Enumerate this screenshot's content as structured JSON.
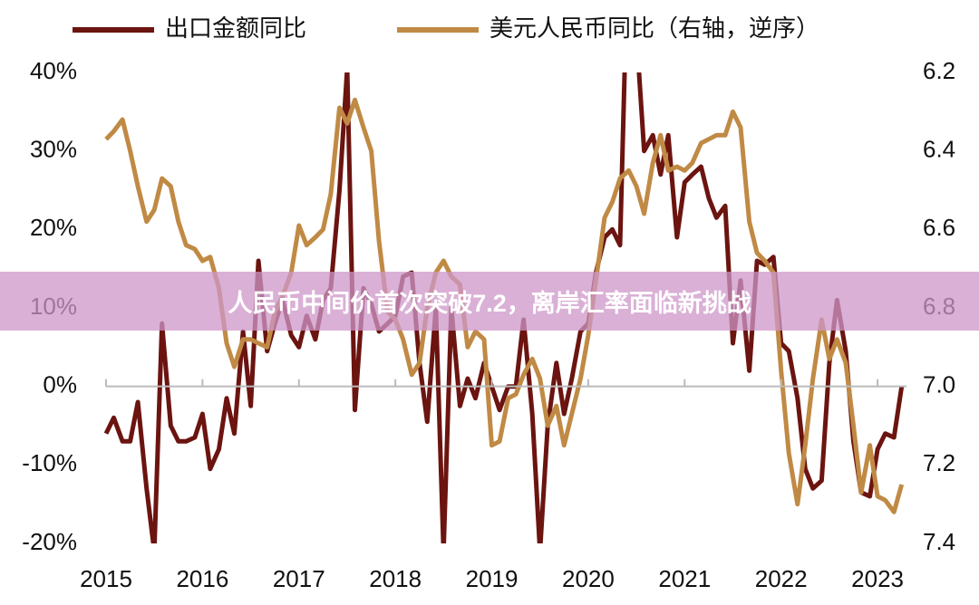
{
  "chart_data": {
    "type": "line",
    "legend": "top",
    "x": [
      2015,
      2015.08,
      2015.17,
      2015.25,
      2015.33,
      2015.42,
      2015.5,
      2015.58,
      2015.67,
      2015.75,
      2015.83,
      2015.92,
      2016,
      2016.08,
      2016.17,
      2016.25,
      2016.33,
      2016.42,
      2016.5,
      2016.58,
      2016.67,
      2016.75,
      2016.83,
      2016.92,
      2017,
      2017.08,
      2017.17,
      2017.25,
      2017.33,
      2017.42,
      2017.5,
      2017.58,
      2017.67,
      2017.75,
      2017.83,
      2017.92,
      2018,
      2018.08,
      2018.17,
      2018.25,
      2018.33,
      2018.42,
      2018.5,
      2018.58,
      2018.67,
      2018.75,
      2018.83,
      2018.92,
      2019,
      2019.08,
      2019.17,
      2019.25,
      2019.33,
      2019.42,
      2019.5,
      2019.58,
      2019.67,
      2019.75,
      2019.83,
      2019.92,
      2020,
      2020.08,
      2020.17,
      2020.25,
      2020.33,
      2020.42,
      2020.5,
      2020.58,
      2020.67,
      2020.75,
      2020.83,
      2020.92,
      2021,
      2021.08,
      2021.17,
      2021.25,
      2021.33,
      2021.42,
      2021.5,
      2021.58,
      2021.67,
      2021.75,
      2021.83,
      2021.92,
      2022,
      2022.08,
      2022.17,
      2022.25,
      2022.33,
      2022.42,
      2022.5,
      2022.58,
      2022.67,
      2022.75,
      2022.83,
      2022.92,
      2023,
      2023.08,
      2023.17,
      2023.25
    ],
    "xlim": [
      2015,
      2023.3
    ],
    "xticks": [
      2015,
      2016,
      2017,
      2018,
      2019,
      2020,
      2021,
      2022,
      2023
    ],
    "ylim": [
      -20,
      40
    ],
    "yticks": [
      {
        "value": -20,
        "label": "-20%"
      },
      {
        "value": -10,
        "label": "-10%"
      },
      {
        "value": 0,
        "label": "0%"
      },
      {
        "value": 10,
        "label": "10%"
      },
      {
        "value": 20,
        "label": "20%"
      },
      {
        "value": 30,
        "label": "30%"
      },
      {
        "value": 40,
        "label": "40%"
      }
    ],
    "y2lim": [
      7.4,
      6.2
    ],
    "y2ticks": [
      7.4,
      7.2,
      {
        "value": 7,
        "label": "7.0"
      },
      6.8,
      6.6,
      6.4,
      6.2
    ],
    "series": [
      {
        "name": "出口金额同比",
        "color": "#6b1410",
        "values": [
          -6,
          -4,
          -7,
          -7,
          -2,
          -13,
          -21,
          8,
          -5,
          -7,
          -7,
          -6.5,
          -3.5,
          -10.5,
          -8,
          -1.5,
          -6,
          7,
          -2.5,
          16,
          4.5,
          8,
          11,
          6.5,
          5,
          9,
          6,
          11,
          12.5,
          25,
          40.5,
          -3,
          12.5,
          10.5,
          7,
          8,
          9,
          14,
          14.5,
          3,
          -4.5,
          10,
          -21,
          10,
          -2.5,
          1,
          -1.5,
          3,
          0,
          -3,
          0,
          0,
          8.5,
          -3.5,
          -21,
          -5,
          3,
          -3.5,
          1,
          7,
          8,
          14.5,
          19,
          20,
          18,
          60,
          45,
          30,
          32,
          27,
          32,
          19,
          26,
          27,
          28,
          24,
          21.5,
          23,
          5.5,
          13.5,
          2,
          16,
          15.5,
          16.5,
          5.5,
          4.5,
          -1.5,
          -10.5,
          -13,
          -12,
          3,
          11,
          4.5,
          -7,
          -13.5,
          -14,
          -8,
          -6,
          -6.5,
          0
        ]
      },
      {
        "name": "美元人民币同比（右轴，逆序）",
        "color": "#c08a45",
        "axis": "y2",
        "values": [
          6.37,
          6.35,
          6.32,
          6.4,
          6.49,
          6.58,
          6.55,
          6.47,
          6.49,
          6.58,
          6.64,
          6.65,
          6.68,
          6.67,
          6.75,
          6.89,
          6.95,
          6.88,
          6.88,
          6.89,
          6.9,
          6.81,
          6.77,
          6.71,
          6.59,
          6.64,
          6.62,
          6.6,
          6.51,
          6.29,
          6.33,
          6.27,
          6.34,
          6.4,
          6.63,
          6.81,
          6.83,
          6.88,
          6.97,
          6.94,
          6.8,
          6.71,
          6.68,
          6.72,
          6.74,
          6.9,
          6.86,
          6.88,
          7.15,
          7.14,
          7.03,
          7.02,
          6.97,
          6.93,
          6.98,
          7.1,
          7.05,
          7.15,
          7.07,
          6.98,
          6.87,
          6.73,
          6.57,
          6.53,
          6.47,
          6.45,
          6.49,
          6.56,
          6.43,
          6.36,
          6.45,
          6.44,
          6.45,
          6.43,
          6.38,
          6.37,
          6.36,
          6.36,
          6.3,
          6.34,
          6.58,
          6.66,
          6.68,
          6.71,
          6.96,
          7.17,
          7.3,
          7.15,
          6.98,
          6.83,
          6.93,
          6.88,
          6.94,
          7.1,
          7.27,
          7.15,
          7.28,
          7.29,
          7.32,
          7.25
        ]
      }
    ]
  },
  "overlay": {
    "headline": "人民币中间价首次突破7.2，离岸汇率面临新挑战"
  }
}
